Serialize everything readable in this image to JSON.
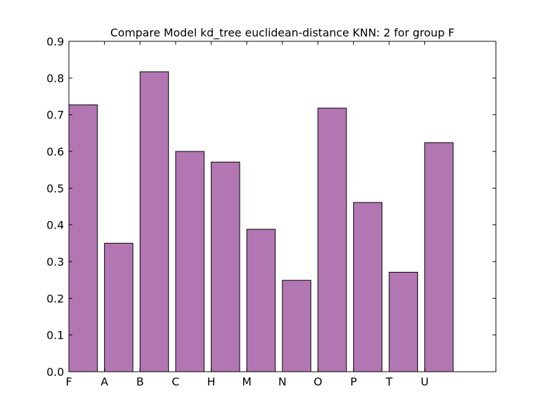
{
  "chart_data": {
    "type": "bar",
    "title": "Compare Model kd_tree euclidean-distance KNN: 2 for group F",
    "xlabel": "",
    "ylabel": "",
    "categories": [
      "F",
      "A",
      "B",
      "C",
      "H",
      "M",
      "N",
      "O",
      "P",
      "T",
      "U"
    ],
    "values": [
      0.727,
      0.35,
      0.817,
      0.6,
      0.571,
      0.388,
      0.249,
      0.718,
      0.461,
      0.271,
      0.624
    ],
    "ylim": [
      0,
      0.9
    ],
    "yticks": [
      "0.0",
      "0.1",
      "0.2",
      "0.3",
      "0.4",
      "0.5",
      "0.6",
      "0.7",
      "0.8",
      "0.9"
    ],
    "xlim": [
      0,
      12
    ],
    "grid": false,
    "legend": "none",
    "bar_color": "#b276b2",
    "edge_color": "#000000"
  }
}
